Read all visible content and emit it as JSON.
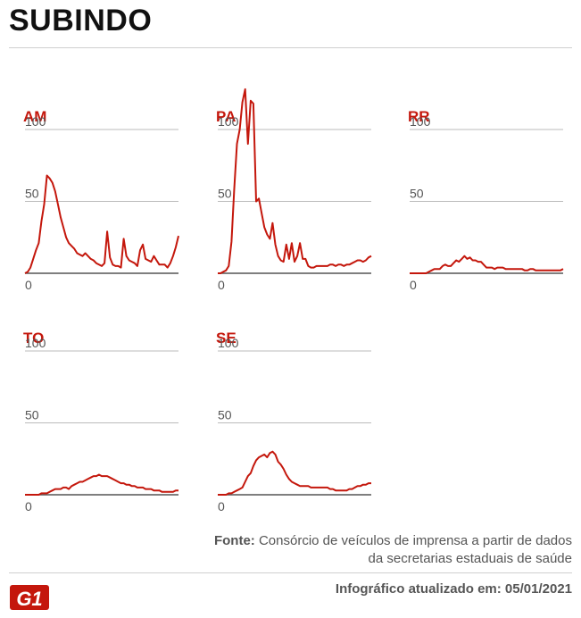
{
  "title": "SUBINDO",
  "source_label": "Fonte:",
  "source_text": "Consórcio de veículos de imprensa a partir de dados da secretarias estaduais de saúde",
  "updated": "Infográfico atualizado em: 05/01/2021",
  "logo_text": "G1",
  "colors": {
    "line": "#c4170c",
    "grid": "#bbbbbb",
    "axis": "#555555",
    "title": "#111111"
  },
  "chart_data": [
    {
      "type": "line",
      "title": "AM",
      "yticks": [
        0,
        50,
        100
      ],
      "ylim": [
        0,
        100
      ],
      "grid": true,
      "values": [
        0,
        1,
        4,
        10,
        16,
        21,
        36,
        48,
        68,
        66,
        63,
        57,
        48,
        39,
        32,
        25,
        21,
        19,
        17,
        14,
        13,
        12,
        14,
        12,
        10,
        9,
        7,
        6,
        5,
        7,
        29,
        11,
        6,
        5,
        5,
        4,
        24,
        12,
        9,
        8,
        7,
        5,
        16,
        20,
        10,
        9,
        8,
        12,
        9,
        6,
        6,
        6,
        4,
        7,
        12,
        18,
        26
      ]
    },
    {
      "type": "line",
      "title": "PA",
      "yticks": [
        0,
        50,
        100
      ],
      "ylim": [
        0,
        100
      ],
      "grid": true,
      "values": [
        0,
        0,
        1,
        2,
        5,
        22,
        58,
        90,
        100,
        119,
        128,
        90,
        120,
        118,
        50,
        52,
        42,
        32,
        27,
        24,
        35,
        20,
        12,
        9,
        8,
        20,
        10,
        21,
        8,
        12,
        21,
        10,
        10,
        5,
        4,
        4,
        5,
        5,
        5,
        5,
        5,
        6,
        6,
        5,
        6,
        6,
        5,
        6,
        6,
        7,
        8,
        9,
        9,
        8,
        9,
        11,
        12
      ]
    },
    {
      "type": "line",
      "title": "RR",
      "yticks": [
        0,
        50,
        100
      ],
      "ylim": [
        0,
        100
      ],
      "grid": true,
      "values": [
        0,
        0,
        0,
        0,
        0,
        0,
        0,
        1,
        2,
        3,
        3,
        3,
        5,
        6,
        5,
        5,
        7,
        9,
        8,
        10,
        12,
        10,
        11,
        9,
        9,
        8,
        8,
        6,
        4,
        4,
        4,
        3,
        4,
        4,
        4,
        3,
        3,
        3,
        3,
        3,
        3,
        3,
        2,
        2,
        3,
        3,
        2,
        2,
        2,
        2,
        2,
        2,
        2,
        2,
        2,
        2,
        3
      ]
    },
    {
      "type": "line",
      "title": "TO",
      "yticks": [
        0,
        50,
        100
      ],
      "ylim": [
        0,
        100
      ],
      "grid": true,
      "values": [
        0,
        0,
        0,
        0,
        0,
        0,
        1,
        1,
        1,
        2,
        3,
        4,
        4,
        4,
        5,
        5,
        4,
        6,
        7,
        8,
        9,
        9,
        10,
        11,
        12,
        13,
        13,
        14,
        13,
        13,
        13,
        12,
        11,
        10,
        9,
        8,
        8,
        7,
        7,
        6,
        6,
        5,
        5,
        5,
        4,
        4,
        4,
        3,
        3,
        3,
        2,
        2,
        2,
        2,
        2,
        3,
        3
      ]
    },
    {
      "type": "line",
      "title": "SE",
      "yticks": [
        0,
        50,
        100
      ],
      "ylim": [
        0,
        100
      ],
      "grid": true,
      "values": [
        0,
        0,
        0,
        0,
        1,
        1,
        2,
        3,
        4,
        5,
        9,
        13,
        15,
        20,
        24,
        26,
        27,
        28,
        26,
        29,
        30,
        28,
        23,
        21,
        18,
        14,
        11,
        9,
        8,
        7,
        6,
        6,
        6,
        6,
        5,
        5,
        5,
        5,
        5,
        5,
        5,
        4,
        4,
        3,
        3,
        3,
        3,
        3,
        4,
        4,
        5,
        6,
        6,
        7,
        7,
        8,
        8
      ]
    }
  ]
}
